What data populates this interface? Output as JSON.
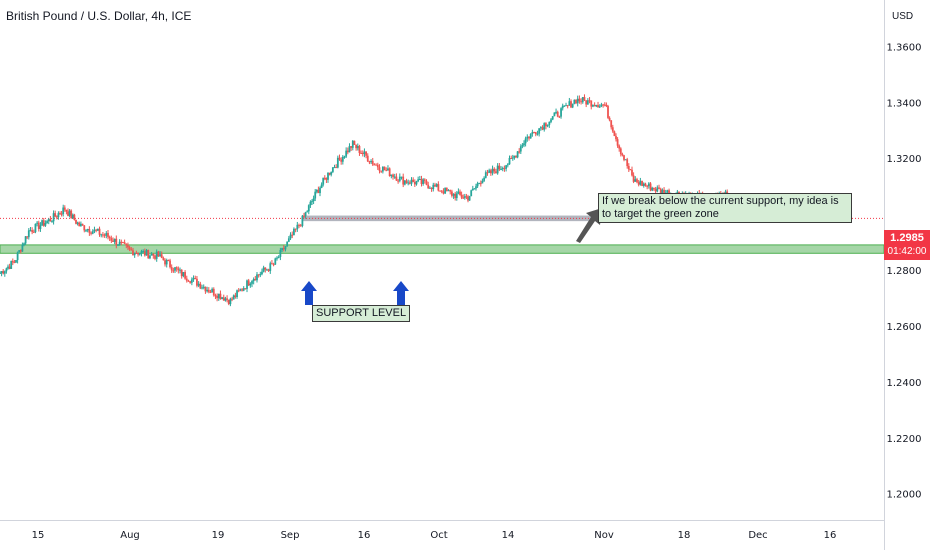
{
  "header": {
    "title": "British Pound / U.S. Dollar, 4h, ICE"
  },
  "axis": {
    "currency": "USD"
  },
  "price_tag": {
    "price": "1.2985",
    "countdown": "01:42:00",
    "color": "#f23645"
  },
  "annotations": {
    "note": "If we break below the current support, my idea is to target the green zone",
    "support_label": "SUPPORT LEVEL"
  },
  "colors": {
    "up": "#26a69a",
    "down": "#ef5350",
    "zone": "#a5d6a7",
    "band": "#b2b5be",
    "arrow": "#1848c8"
  },
  "chart_data": {
    "type": "candlestick",
    "title": "British Pound / U.S. Dollar, 4h, ICE",
    "y_ticks": [
      1.36,
      1.34,
      1.32,
      1.28,
      1.26,
      1.24,
      1.22,
      1.2
    ],
    "ylim": [
      1.1906,
      1.3766
    ],
    "x_ticks": [
      "15",
      "Aug",
      "19",
      "Sep",
      "16",
      "Oct",
      "14",
      "Nov",
      "18",
      "Dec",
      "16"
    ],
    "last_price": 1.2985,
    "series_anchors": [
      {
        "x": "Jul 8",
        "close": 1.279
      },
      {
        "x": "Jul 10",
        "close": 1.283
      },
      {
        "x": "Jul 12",
        "close": 1.294
      },
      {
        "x": "Jul 15",
        "close": 1.298
      },
      {
        "x": "Jul 17",
        "close": 1.302
      },
      {
        "x": "Jul 19",
        "close": 1.296
      },
      {
        "x": "Jul 23",
        "close": 1.292
      },
      {
        "x": "Jul 26",
        "close": 1.287
      },
      {
        "x": "Jul 30",
        "close": 1.285
      },
      {
        "x": "Aug 2",
        "close": 1.279
      },
      {
        "x": "Aug 6",
        "close": 1.273
      },
      {
        "x": "Aug 9",
        "close": 1.269
      },
      {
        "x": "Aug 12",
        "close": 1.277
      },
      {
        "x": "Aug 15",
        "close": 1.282
      },
      {
        "x": "Aug 19",
        "close": 1.298
      },
      {
        "x": "Aug 21",
        "close": 1.308
      },
      {
        "x": "Aug 23",
        "close": 1.316
      },
      {
        "x": "Aug 26",
        "close": 1.325
      },
      {
        "x": "Aug 29",
        "close": 1.318
      },
      {
        "x": "Sep 2",
        "close": 1.312
      },
      {
        "x": "Sep 5",
        "close": 1.311
      },
      {
        "x": "Sep 9",
        "close": 1.307
      },
      {
        "x": "Sep 11",
        "close": 1.306
      },
      {
        "x": "Sep 13",
        "close": 1.313
      },
      {
        "x": "Sep 17",
        "close": 1.319
      },
      {
        "x": "Sep 19",
        "close": 1.327
      },
      {
        "x": "Sep 23",
        "close": 1.335
      },
      {
        "x": "Sep 26",
        "close": 1.341
      },
      {
        "x": "Sep 30",
        "close": 1.339
      },
      {
        "x": "Oct 2",
        "close": 1.324
      },
      {
        "x": "Oct 4",
        "close": 1.312
      },
      {
        "x": "Oct 8",
        "close": 1.308
      },
      {
        "x": "Oct 11",
        "close": 1.307
      },
      {
        "x": "Oct 15",
        "close": 1.305
      },
      {
        "x": "Oct 17",
        "close": 1.308
      },
      {
        "x": "Oct 18",
        "close": 1.2985
      }
    ],
    "support_band": [
      1.2975,
      1.2995
    ],
    "target_zone": [
      1.286,
      1.289
    ],
    "grid": false
  }
}
